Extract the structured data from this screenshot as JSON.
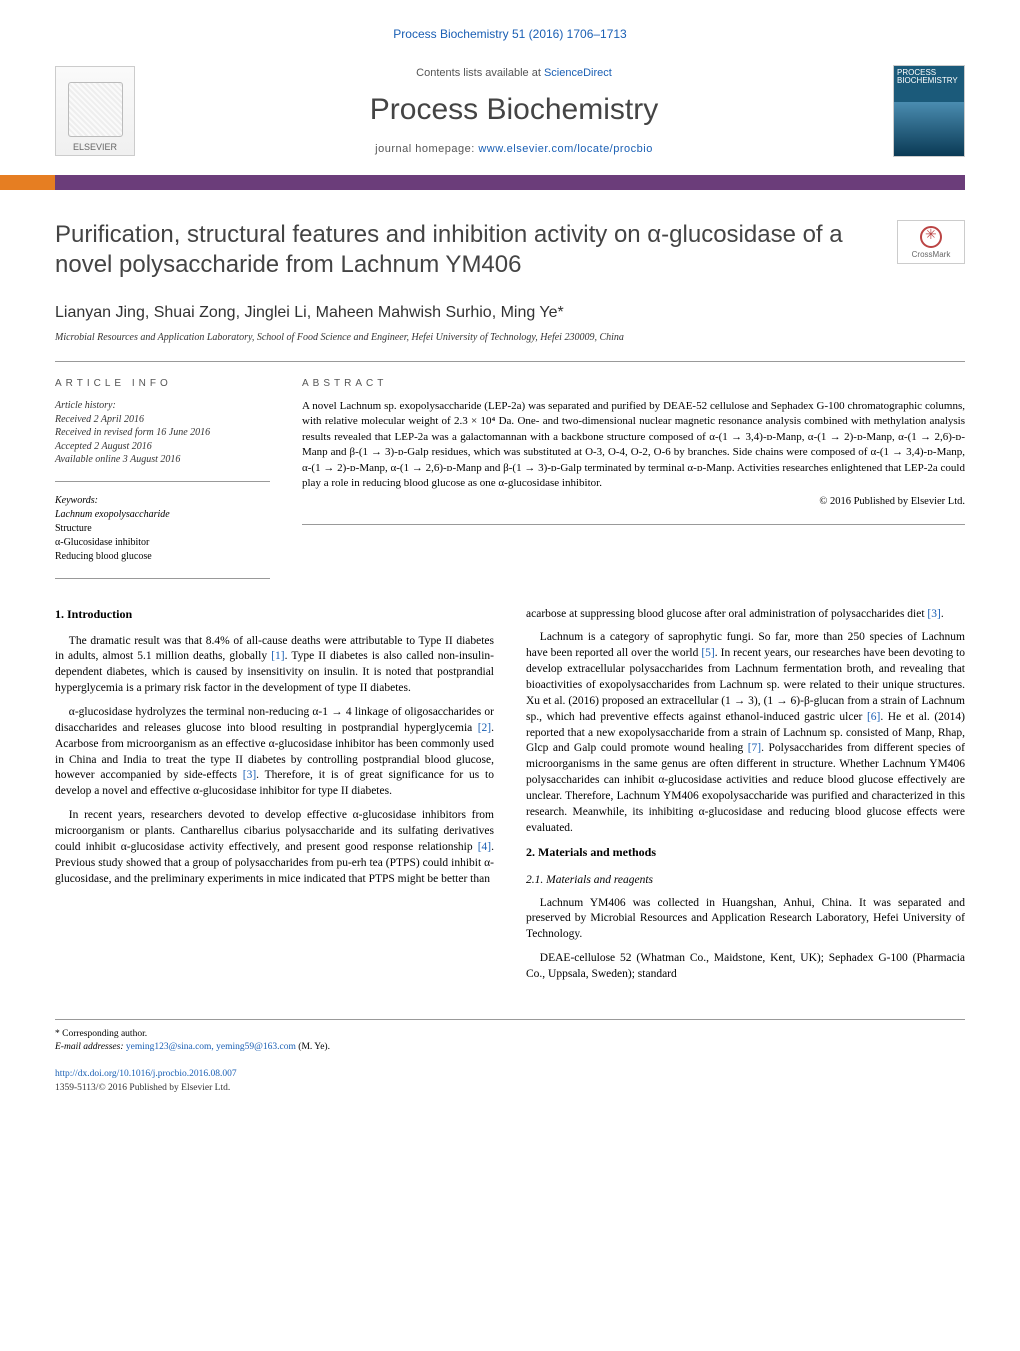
{
  "journal_info": "Process Biochemistry 51 (2016) 1706–1713",
  "contents_line_prefix": "Contents lists available at ",
  "contents_line_link": "ScienceDirect",
  "journal_title": "Process Biochemistry",
  "homepage_prefix": "journal homepage: ",
  "homepage_url": "www.elsevier.com/locate/procbio",
  "elsevier_label": "ELSEVIER",
  "journal_cover_text": "PROCESS\nBIOCHEMISTRY",
  "crossmark_label": "CrossMark",
  "article_title": "Purification, structural features and inhibition activity on α-glucosidase of a novel polysaccharide from Lachnum YM406",
  "authors": "Lianyan Jing, Shuai Zong, Jinglei Li, Maheen Mahwish Surhio, Ming Ye*",
  "affiliation": "Microbial Resources and Application Laboratory, School of Food Science and Engineer, Hefei University of Technology, Hefei 230009, China",
  "article_info_label": "article info",
  "abstract_label": "abstract",
  "history_label": "Article history:",
  "history_lines": [
    "Received 2 April 2016",
    "Received in revised form 16 June 2016",
    "Accepted 2 August 2016",
    "Available online 3 August 2016"
  ],
  "keywords_label": "Keywords:",
  "keywords": [
    "Lachnum exopolysaccharide",
    "Structure",
    "α-Glucosidase inhibitor",
    "Reducing blood glucose"
  ],
  "abstract_text": "A novel Lachnum sp. exopolysaccharide (LEP-2a) was separated and purified by DEAE-52 cellulose and Sephadex G-100 chromatographic columns, with relative molecular weight of 2.3 × 10⁴ Da. One- and two-dimensional nuclear magnetic resonance analysis combined with methylation analysis results revealed that LEP-2a was a galactomannan with a backbone structure composed of α-(1 → 3,4)-ᴅ-Manp, α-(1 → 2)-ᴅ-Manp, α-(1 → 2,6)-ᴅ-Manp and β-(1 → 3)-ᴅ-Galp residues, which was substituted at O-3, O-4, O-2, O-6 by branches. Side chains were composed of α-(1 → 3,4)-ᴅ-Manp, α-(1 → 2)-ᴅ-Manp, α-(1 → 2,6)-ᴅ-Manp and β-(1 → 3)-ᴅ-Galp terminated by terminal α-ᴅ-Manp. Activities researches enlightened that LEP-2a could play a role in reducing blood glucose as one α-glucosidase inhibitor.",
  "copyright": "© 2016 Published by Elsevier Ltd.",
  "intro_heading": "1. Introduction",
  "intro_paras_left": [
    "The dramatic result was that 8.4% of all-cause deaths were attributable to Type II diabetes in adults, almost 5.1 million deaths, globally [1]. Type II diabetes is also called non-insulin-dependent diabetes, which is caused by insensitivity on insulin. It is noted that postprandial hyperglycemia is a primary risk factor in the development of type II diabetes.",
    "α-glucosidase hydrolyzes the terminal non-reducing α-1 → 4 linkage of oligosaccharides or disaccharides and releases glucose into blood resulting in postprandial hyperglycemia [2]. Acarbose from microorganism as an effective α-glucosidase inhibitor has been commonly used in China and India to treat the type II diabetes by controlling postprandial blood glucose, however accompanied by side-effects [3]. Therefore, it is of great significance for us to develop a novel and effective α-glucosidase inhibitor for type II diabetes.",
    "In recent years, researchers devoted to develop effective α-glucosidase inhibitors from microorganism or plants. Cantharellus cibarius polysaccharide and its sulfating derivatives could inhibit α-glucosidase activity effectively, and present good response relationship [4]. Previous study showed that a group of polysaccharides from pu-erh tea (PTPS) could inhibit α-glucosidase, and the preliminary experiments in mice indicated that PTPS might be better than"
  ],
  "right_top_para": "acarbose at suppressing blood glucose after oral administration of polysaccharides diet [3].",
  "right_main_para": "Lachnum is a category of saprophytic fungi. So far, more than 250 species of Lachnum have been reported all over the world [5]. In recent years, our researches have been devoting to develop extracellular polysaccharides from Lachnum fermentation broth, and revealing that bioactivities of exopolysaccharides from Lachnum sp. were related to their unique structures. Xu et al. (2016) proposed an extracellular (1 → 3), (1 → 6)-β-glucan from a strain of Lachnum sp., which had preventive effects against ethanol-induced gastric ulcer [6]. He et al. (2014) reported that a new exopolysaccharide from a strain of Lachnum sp. consisted of Manp, Rhap, Glcp and Galp could promote wound healing [7]. Polysaccharides from different species of microorganisms in the same genus are often different in structure. Whether Lachnum YM406 polysaccharides can inhibit α-glucosidase activities and reduce blood glucose effectively are unclear. Therefore, Lachnum YM406 exopolysaccharide was purified and characterized in this research. Meanwhile, its inhibiting α-glucosidase and reducing blood glucose effects were evaluated.",
  "methods_heading": "2. Materials and methods",
  "methods_sub_heading": "2.1. Materials and reagents",
  "methods_paras": [
    "Lachnum YM406 was collected in Huangshan, Anhui, China. It was separated and preserved by Microbial Resources and Application Research Laboratory, Hefei University of Technology.",
    "DEAE-cellulose 52 (Whatman Co., Maidstone, Kent, UK); Sephadex G-100 (Pharmacia Co., Uppsala, Sweden); standard"
  ],
  "footer_corresponding": "* Corresponding author.",
  "footer_email_label": "E-mail addresses: ",
  "footer_emails": "yeming123@sina.com, yeming59@163.com",
  "footer_email_suffix": " (M. Ye).",
  "footer_doi": "http://dx.doi.org/10.1016/j.procbio.2016.08.007",
  "footer_issn": "1359-5113/© 2016 Published by Elsevier Ltd.",
  "colors": {
    "link": "#1a5fb4",
    "bar_main": "#6b3d7a",
    "bar_accent": "#e67e22",
    "cover_top": "#1b5a7a",
    "cover_bottom": "#0a3a55"
  }
}
